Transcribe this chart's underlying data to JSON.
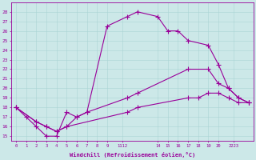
{
  "xlabel": "Windchill (Refroidissement éolien,°C)",
  "bg_color": "#cce8e8",
  "line_color": "#990099",
  "grid_color": "#aad4d4",
  "ylim": [
    14.5,
    29.0
  ],
  "xlim": [
    -0.5,
    23.5
  ],
  "yticks": [
    15,
    16,
    17,
    18,
    19,
    20,
    21,
    22,
    23,
    24,
    25,
    26,
    27,
    28
  ],
  "line1_x": [
    0,
    1,
    2,
    3,
    4,
    5,
    6,
    7,
    9,
    11,
    12,
    14,
    15,
    16,
    17,
    19,
    20,
    21,
    22,
    23
  ],
  "line1_y": [
    18,
    17,
    16,
    15,
    15,
    17.5,
    17,
    17.5,
    26.5,
    27.5,
    28,
    27.5,
    26,
    26,
    25,
    24.5,
    22.5,
    20,
    19,
    18.5
  ],
  "line2_x": [
    0,
    2,
    3,
    4,
    5,
    6,
    7,
    11,
    12,
    17,
    19,
    20,
    21,
    22,
    23
  ],
  "line2_y": [
    18,
    16.5,
    16,
    15.5,
    16,
    17,
    17.5,
    19,
    19.5,
    22,
    22,
    20.5,
    20,
    19,
    18.5
  ],
  "line3_x": [
    0,
    2,
    3,
    4,
    5,
    11,
    12,
    17,
    18,
    19,
    20,
    21,
    22,
    23
  ],
  "line3_y": [
    18,
    16.5,
    16,
    15.5,
    16,
    17.5,
    18,
    19,
    19,
    19.5,
    19.5,
    19,
    18.5,
    18.5
  ]
}
